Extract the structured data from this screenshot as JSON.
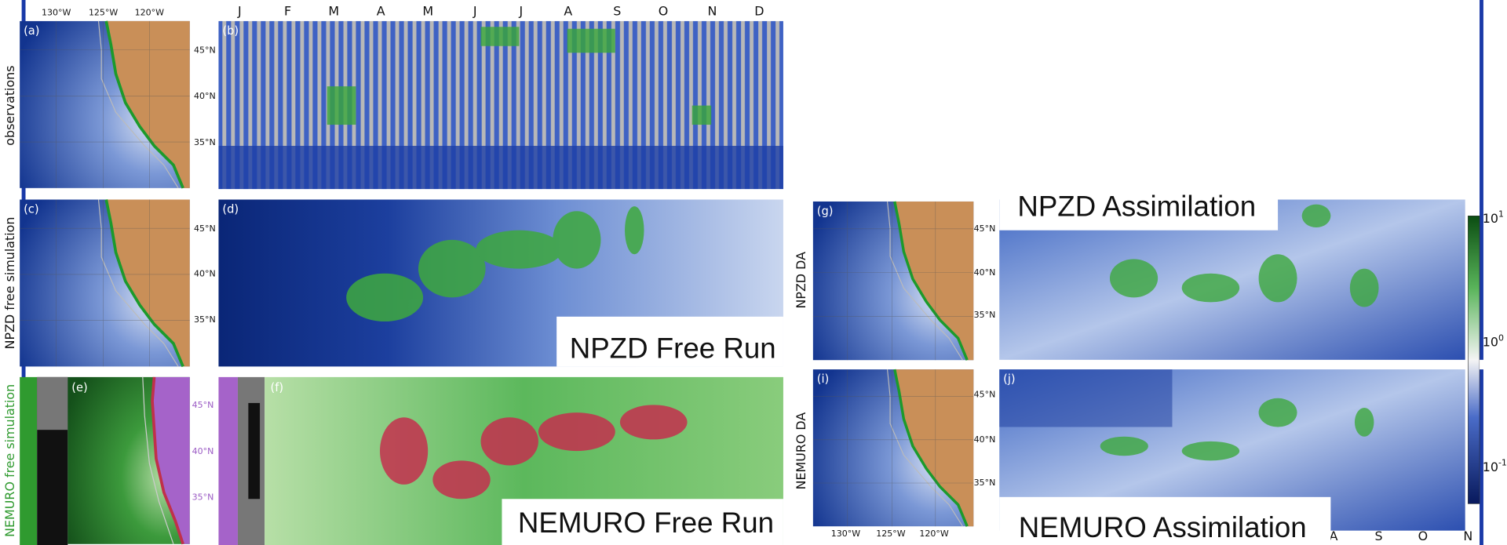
{
  "top_longitude_labels": [
    "130°W",
    "125°W",
    "120°W"
  ],
  "months": [
    "J",
    "F",
    "M",
    "A",
    "M",
    "J",
    "J",
    "A",
    "S",
    "O",
    "N",
    "D"
  ],
  "panel_labels": [
    "(a)",
    "(b)",
    "(c)",
    "(d)",
    "(e)",
    "(f)",
    "(g)",
    "(j)",
    "(i)"
  ],
  "row_labels": {
    "observations": "observations",
    "npzd_free": "NPZD free simulation",
    "nemuro_free": "NEMURO free simulation",
    "npzd_da": "NPZD DA",
    "nemuro_da": "NEMURO DA"
  },
  "latitude_labels": {
    "b": [
      "45°N",
      "40°N",
      "35°N"
    ],
    "d": [
      "45°N",
      "40°N",
      "35°N"
    ],
    "f": [
      "45°N",
      "40°N",
      "35°N"
    ],
    "g": [
      "45°N",
      "40°N",
      "35°N"
    ],
    "i": [
      "45°N",
      "40°N",
      "35°N"
    ]
  },
  "titles": {
    "npzd_free": "NPZD Free Run",
    "nemuro_free": "NEMURO Free Run",
    "npzd_da": "NPZD Assimilation",
    "nemuro_da": "NEMURO Assimilation"
  },
  "colorbar_ticks": [
    {
      "base": "10",
      "exponent": "1"
    },
    {
      "base": "10",
      "exponent": "0"
    },
    {
      "base": "10",
      "exponent": "-1"
    }
  ],
  "bottom_longitude_labels": [
    "130°W",
    "125°W",
    "120°W"
  ],
  "bottom_months": [
    "A",
    "S",
    "O",
    "N"
  ]
}
